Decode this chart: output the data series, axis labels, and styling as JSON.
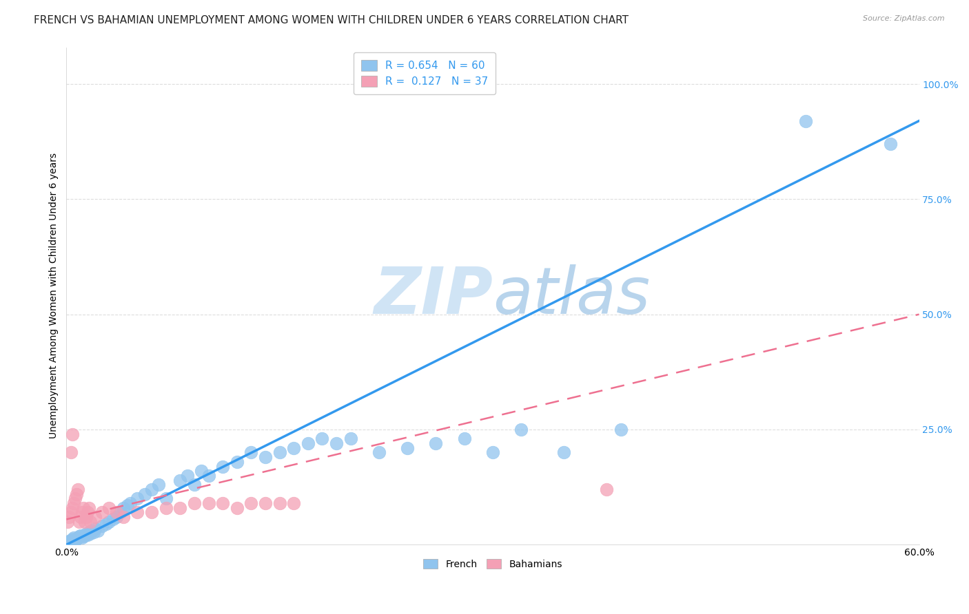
{
  "title": "FRENCH VS BAHAMIAN UNEMPLOYMENT AMONG WOMEN WITH CHILDREN UNDER 6 YEARS CORRELATION CHART",
  "source": "Source: ZipAtlas.com",
  "ylabel": "Unemployment Among Women with Children Under 6 years",
  "xlim": [
    0.0,
    0.6
  ],
  "ylim": [
    0.0,
    1.08
  ],
  "xticks": [
    0.0,
    0.1,
    0.2,
    0.3,
    0.4,
    0.5,
    0.6
  ],
  "xticklabels": [
    "0.0%",
    "",
    "",
    "",
    "",
    "",
    "60.0%"
  ],
  "yticks": [
    0.0,
    0.25,
    0.5,
    0.75,
    1.0
  ],
  "yticklabels": [
    "",
    "25.0%",
    "50.0%",
    "75.0%",
    "100.0%"
  ],
  "french_R": 0.654,
  "french_N": 60,
  "bahamas_R": 0.127,
  "bahamas_N": 37,
  "french_color": "#90C4EE",
  "bahamas_color": "#F4A0B5",
  "french_line_color": "#3399EE",
  "bahamas_line_color": "#EE7090",
  "watermark": "ZIPatlas",
  "watermark_color": "#D0E4F5",
  "title_fontsize": 11,
  "axis_label_fontsize": 10,
  "tick_fontsize": 10,
  "french_x": [
    0.001,
    0.002,
    0.003,
    0.004,
    0.005,
    0.006,
    0.007,
    0.008,
    0.009,
    0.01,
    0.011,
    0.012,
    0.013,
    0.014,
    0.015,
    0.016,
    0.017,
    0.018,
    0.019,
    0.02,
    0.022,
    0.025,
    0.028,
    0.03,
    0.033,
    0.035,
    0.038,
    0.04,
    0.043,
    0.045,
    0.05,
    0.055,
    0.06,
    0.065,
    0.07,
    0.08,
    0.085,
    0.09,
    0.095,
    0.1,
    0.11,
    0.12,
    0.13,
    0.14,
    0.15,
    0.16,
    0.17,
    0.18,
    0.19,
    0.2,
    0.22,
    0.24,
    0.26,
    0.28,
    0.3,
    0.32,
    0.35,
    0.39,
    0.52,
    0.58
  ],
  "french_y": [
    0.005,
    0.008,
    0.01,
    0.012,
    0.015,
    0.01,
    0.012,
    0.015,
    0.018,
    0.02,
    0.015,
    0.018,
    0.02,
    0.025,
    0.022,
    0.028,
    0.025,
    0.03,
    0.028,
    0.035,
    0.03,
    0.04,
    0.045,
    0.05,
    0.055,
    0.06,
    0.07,
    0.08,
    0.085,
    0.09,
    0.1,
    0.11,
    0.12,
    0.13,
    0.1,
    0.14,
    0.15,
    0.13,
    0.16,
    0.15,
    0.17,
    0.18,
    0.2,
    0.19,
    0.2,
    0.21,
    0.22,
    0.23,
    0.22,
    0.23,
    0.2,
    0.21,
    0.22,
    0.23,
    0.2,
    0.25,
    0.2,
    0.25,
    0.92,
    0.87
  ],
  "bahamas_x": [
    0.001,
    0.002,
    0.003,
    0.004,
    0.005,
    0.006,
    0.007,
    0.008,
    0.009,
    0.01,
    0.011,
    0.012,
    0.013,
    0.014,
    0.015,
    0.016,
    0.017,
    0.02,
    0.025,
    0.03,
    0.035,
    0.04,
    0.05,
    0.06,
    0.07,
    0.08,
    0.09,
    0.1,
    0.11,
    0.12,
    0.13,
    0.14,
    0.15,
    0.16,
    0.003,
    0.004,
    0.38
  ],
  "bahamas_y": [
    0.05,
    0.06,
    0.07,
    0.08,
    0.09,
    0.1,
    0.11,
    0.12,
    0.05,
    0.06,
    0.07,
    0.08,
    0.05,
    0.06,
    0.07,
    0.08,
    0.05,
    0.06,
    0.07,
    0.08,
    0.07,
    0.06,
    0.07,
    0.07,
    0.08,
    0.08,
    0.09,
    0.09,
    0.09,
    0.08,
    0.09,
    0.09,
    0.09,
    0.09,
    0.2,
    0.24,
    0.12
  ],
  "french_line_x": [
    0.0,
    0.6
  ],
  "french_line_y": [
    0.0,
    0.92
  ],
  "bahamas_line_x": [
    0.0,
    0.6
  ],
  "bahamas_line_y": [
    0.055,
    0.5
  ],
  "grid_color": "#DDDDDD",
  "background_color": "#FFFFFF"
}
